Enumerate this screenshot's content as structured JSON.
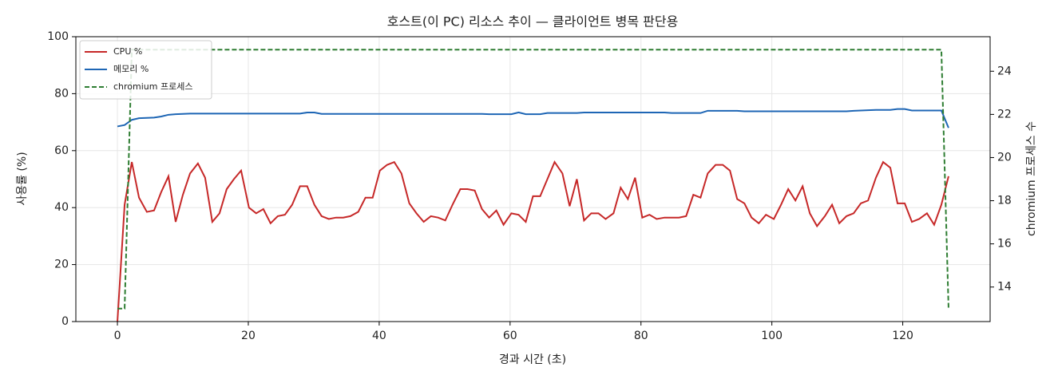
{
  "chart_data": {
    "type": "line",
    "title": "호스트(이 PC) 리소스 추이 — 클라이언트 병목 판단용",
    "x_label": "경과 시간 (초)",
    "y_label": "사용률 (%)",
    "y2_label": "chromium 프로세스 수",
    "x": [
      0,
      1.1,
      2.2,
      3.3,
      4.5,
      5.6,
      6.7,
      7.8,
      8.9,
      10.0,
      11.1,
      12.3,
      13.4,
      14.5,
      15.6,
      16.7,
      17.8,
      18.9,
      20.1,
      21.2,
      22.3,
      23.4,
      24.5,
      25.6,
      26.7,
      27.9,
      29.0,
      30.1,
      31.2,
      32.3,
      33.4,
      34.5,
      35.6,
      36.8,
      37.9,
      39.0,
      40.1,
      41.2,
      42.3,
      43.4,
      44.6,
      45.7,
      46.8,
      47.9,
      49.0,
      50.1,
      51.2,
      52.4,
      53.5,
      54.6,
      55.7,
      56.8,
      57.9,
      59.0,
      60.2,
      61.3,
      62.4,
      63.5,
      64.6,
      65.7,
      66.8,
      68.0,
      69.1,
      70.2,
      71.3,
      72.4,
      73.5,
      74.6,
      75.8,
      76.9,
      78.0,
      79.1,
      80.2,
      81.3,
      82.4,
      83.6,
      84.7,
      85.8,
      86.9,
      88.0,
      89.1,
      90.2,
      91.4,
      92.5,
      93.6,
      94.7,
      95.8,
      96.9,
      98.0,
      99.1,
      100.3,
      101.4,
      102.5,
      103.6,
      104.7,
      105.8,
      106.9,
      108.1,
      109.2,
      110.3,
      111.4,
      112.5,
      113.6,
      114.7,
      115.9,
      117.0,
      118.1,
      119.2,
      120.3,
      121.4,
      122.5,
      123.7,
      124.8,
      125.9,
      127.0
    ],
    "series": [
      {
        "name": "CPU %",
        "color": "#c62828",
        "values": [
          0,
          41,
          56,
          43.5,
          38.5,
          39,
          45.5,
          51,
          35,
          44.5,
          52,
          55.5,
          50.5,
          35,
          38,
          46.5,
          50,
          53,
          40,
          38,
          39.5,
          34.5,
          37,
          37.5,
          41,
          47.5,
          47.5,
          41,
          37,
          36,
          36.5,
          36.5,
          37,
          38.5,
          43.5,
          43.5,
          53,
          55,
          56,
          52,
          41.5,
          38,
          35,
          37,
          36.5,
          35.5,
          41,
          46.5,
          46.5,
          46,
          39.5,
          36.5,
          39,
          34,
          38,
          37.5,
          35,
          44,
          44,
          50,
          56,
          52,
          40.5,
          50,
          35.5,
          38,
          38,
          36,
          38,
          47,
          43,
          50.5,
          36.5,
          37.5,
          36,
          36.5,
          36.5,
          36.5,
          37,
          44.5,
          43.5,
          52,
          55,
          55,
          53,
          43,
          41.5,
          36.5,
          34.5,
          37.5,
          36,
          41,
          46.5,
          42.5,
          47.5,
          38,
          33.5,
          37,
          41,
          34.5,
          37,
          38,
          41.5,
          42.5,
          50.5,
          56,
          54,
          41.5,
          41.5,
          35,
          36,
          38,
          34,
          41,
          51
        ]
      },
      {
        "name": "메모리 %",
        "color": "#1e66b5",
        "values": [
          68.5,
          69,
          70.8,
          71.4,
          71.5,
          71.6,
          72,
          72.6,
          72.8,
          72.9,
          73,
          73,
          73,
          73,
          73,
          73,
          73,
          73,
          73,
          73,
          73,
          73,
          73,
          73,
          73,
          73,
          73.4,
          73.4,
          72.9,
          72.9,
          72.9,
          72.9,
          72.9,
          72.9,
          72.9,
          72.9,
          72.9,
          72.9,
          72.9,
          72.9,
          72.9,
          72.9,
          72.9,
          72.9,
          72.9,
          72.9,
          72.9,
          72.9,
          72.9,
          72.9,
          72.9,
          72.8,
          72.8,
          72.8,
          72.8,
          73.4,
          72.8,
          72.8,
          72.8,
          73.2,
          73.2,
          73.2,
          73.2,
          73.2,
          73.4,
          73.4,
          73.4,
          73.4,
          73.4,
          73.4,
          73.4,
          73.4,
          73.4,
          73.4,
          73.4,
          73.4,
          73.2,
          73.2,
          73.2,
          73.2,
          73.2,
          74,
          74,
          74,
          74,
          74,
          73.8,
          73.8,
          73.8,
          73.8,
          73.8,
          73.8,
          73.8,
          73.8,
          73.8,
          73.8,
          73.8,
          73.8,
          73.8,
          73.8,
          73.8,
          74,
          74.1,
          74.2,
          74.3,
          74.3,
          74.3,
          74.6,
          74.6,
          74.1,
          74.1,
          74.1,
          74.1,
          74.1,
          68
        ]
      },
      {
        "name": "chromium 프로세스",
        "color": "#2e7d32",
        "axis": "y2",
        "dashed": true,
        "values": [
          13,
          13,
          25,
          25,
          25,
          25,
          25,
          25,
          25,
          25,
          25,
          25,
          25,
          25,
          25,
          25,
          25,
          25,
          25,
          25,
          25,
          25,
          25,
          25,
          25,
          25,
          25,
          25,
          25,
          25,
          25,
          25,
          25,
          25,
          25,
          25,
          25,
          25,
          25,
          25,
          25,
          25,
          25,
          25,
          25,
          25,
          25,
          25,
          25,
          25,
          25,
          25,
          25,
          25,
          25,
          25,
          25,
          25,
          25,
          25,
          25,
          25,
          25,
          25,
          25,
          25,
          25,
          25,
          25,
          25,
          25,
          25,
          25,
          25,
          25,
          25,
          25,
          25,
          25,
          25,
          25,
          25,
          25,
          25,
          25,
          25,
          25,
          25,
          25,
          25,
          25,
          25,
          25,
          25,
          25,
          25,
          25,
          25,
          25,
          25,
          25,
          25,
          25,
          25,
          25,
          25,
          25,
          25,
          25,
          25,
          25,
          25,
          25,
          25,
          13
        ]
      }
    ],
    "xlim": [
      -6.35,
      133.35
    ],
    "xticks": [
      0,
      20,
      40,
      60,
      80,
      100,
      120
    ],
    "ylim": [
      0,
      100
    ],
    "yticks": [
      0,
      20,
      40,
      60,
      80,
      100
    ],
    "y2lim": [
      12.4,
      25.6
    ],
    "y2ticks": [
      14,
      16,
      18,
      20,
      22,
      24
    ],
    "grid": true,
    "legend": "upper left"
  }
}
